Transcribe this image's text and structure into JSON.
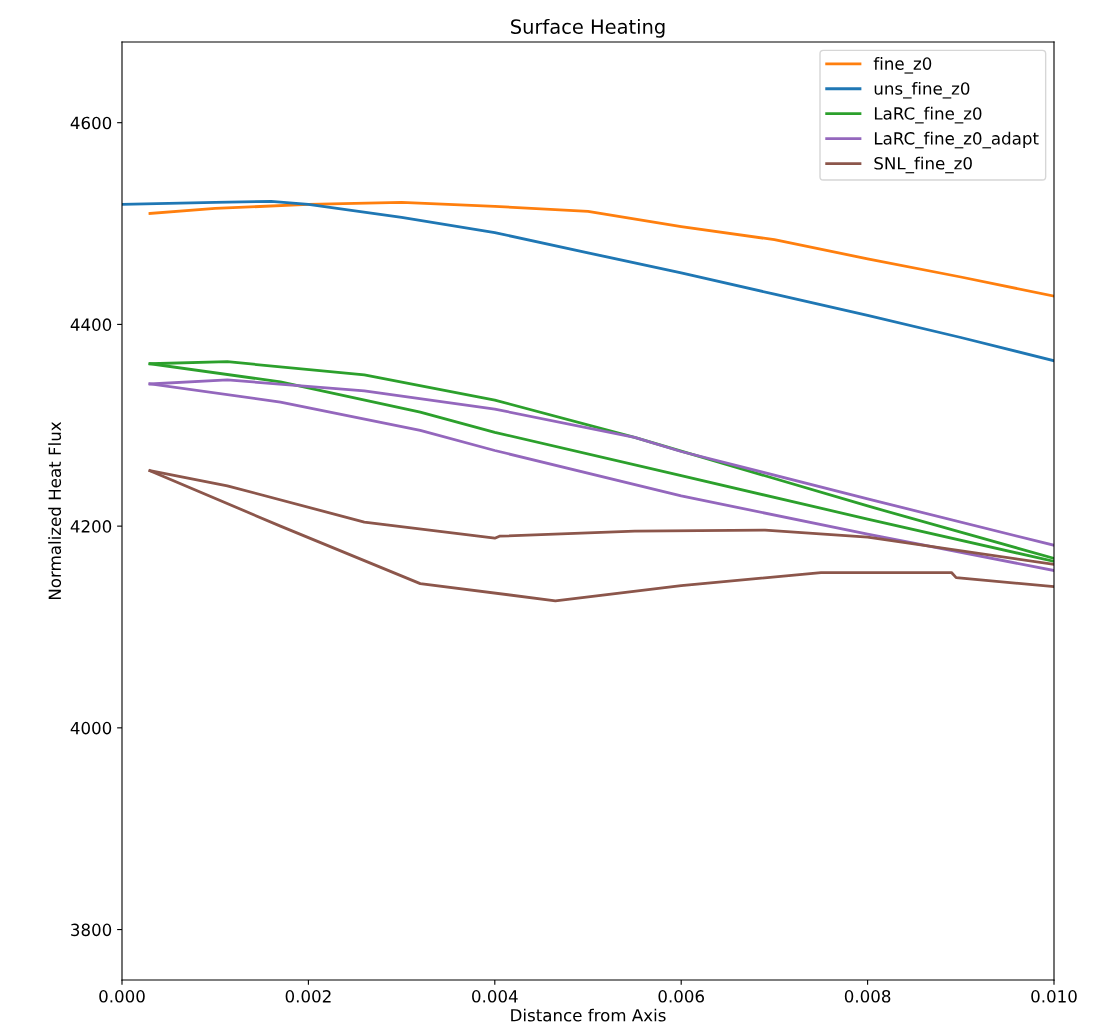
{
  "chart_data": {
    "type": "line",
    "title": "Surface Heating",
    "xlabel": "Distance from Axis",
    "ylabel": "Normalized Heat Flux",
    "xlim": [
      0,
      0.01
    ],
    "ylim": [
      3750,
      4680
    ],
    "xticks": [
      {
        "value": 0,
        "label": "0.000"
      },
      {
        "value": 0.002,
        "label": "0.002"
      },
      {
        "value": 0.004,
        "label": "0.004"
      },
      {
        "value": 0.006,
        "label": "0.006"
      },
      {
        "value": 0.008,
        "label": "0.008"
      },
      {
        "value": 0.01,
        "label": "0.010"
      }
    ],
    "yticks": [
      3800,
      4000,
      4200,
      4400,
      4600
    ],
    "grid": false,
    "legend": "top right",
    "marker": "none",
    "line_style": "solid",
    "series": [
      {
        "name": "fine_z0",
        "color": "#ff7f0e",
        "x": [
          0.0003,
          0.001,
          0.002,
          0.003,
          0.004,
          0.005,
          0.006,
          0.007,
          0.008,
          0.009,
          0.01
        ],
        "values": [
          4510,
          4515,
          4519,
          4521,
          4517,
          4512,
          4497,
          4484,
          4465,
          4447,
          4428
        ]
      },
      {
        "name": "uns_fine_z0",
        "color": "#1f77b4",
        "x": [
          0,
          0.001,
          0.0016,
          0.002,
          0.003,
          0.004,
          0.005,
          0.006,
          0.007,
          0.008,
          0.009,
          0.01
        ],
        "values": [
          4519,
          4521,
          4522,
          4519,
          4506,
          4491,
          4471,
          4451,
          4430,
          4409,
          4387,
          4364
        ]
      },
      {
        "name": "LaRC_fine_z0",
        "color": "#2ca02c",
        "x": [
          0.0003,
          0.00113,
          0.0026,
          0.004,
          0.0055,
          0.008,
          0.01
        ],
        "values": [
          4361,
          4363,
          4350,
          4325,
          4288,
          4220,
          4168
        ]
      },
      {
        "color": "#2ca02c",
        "x": [
          0.0003,
          0.0017,
          0.0032,
          0.004,
          0.006,
          0.008,
          0.01
        ],
        "values": [
          4361,
          4343,
          4313,
          4293,
          4250,
          4207,
          4165
        ]
      },
      {
        "name": "LaRC_fine_z0_adapt",
        "color": "#9467bd",
        "x": [
          0.0003,
          0.00113,
          0.0026,
          0.004,
          0.0055,
          0.006,
          0.008,
          0.01
        ],
        "values": [
          4341,
          4345,
          4334,
          4316,
          4288,
          4274,
          4227,
          4181
        ]
      },
      {
        "color": "#9467bd",
        "x": [
          0.0003,
          0.0017,
          0.0032,
          0.004,
          0.006,
          0.008,
          0.01
        ],
        "values": [
          4341,
          4323,
          4295,
          4275,
          4230,
          4192,
          4156
        ]
      },
      {
        "name": "SNL_fine_z0",
        "color": "#8c564b",
        "x": [
          0.0003,
          0.00113,
          0.0026,
          0.004,
          0.00405,
          0.0055,
          0.0069,
          0.008,
          0.01
        ],
        "values": [
          4255,
          4240,
          4204,
          4188,
          4190,
          4195,
          4196,
          4189,
          4162
        ]
      },
      {
        "color": "#8c564b",
        "x": [
          0.0003,
          0.0017,
          0.0032,
          0.00465,
          0.006,
          0.0075,
          0.0089,
          0.00895,
          0.01
        ],
        "values": [
          4255,
          4200,
          4143,
          4126,
          4141,
          4154,
          4154,
          4149,
          4140
        ]
      }
    ]
  }
}
